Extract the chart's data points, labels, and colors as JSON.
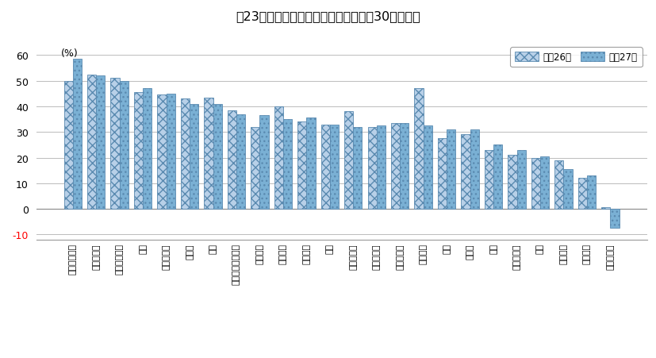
{
  "title": "第23図　産業別の付加価値率（従業者30人以上）",
  "ylabel": "(%)",
  "ylim": [
    -12,
    65
  ],
  "yticks": [
    -10,
    0,
    10,
    20,
    30,
    40,
    50,
    60
  ],
  "categories": [
    "飲料・たばこ",
    "窯業・土石",
    "情報通信機械",
    "化学",
    "業務用機械",
    "食料品",
    "印刷",
    "プラスチック製品",
    "電気機械",
    "金属製品",
    "ゴム製品",
    "繊維",
    "はん用機械",
    "生産用機械",
    "パルプ・紙",
    "なめし革",
    "木材",
    "その他",
    "家具",
    "輸送用機械",
    "鉄鋼",
    "電子部品",
    "非鉄金属",
    "石油・石炭"
  ],
  "values_h26": [
    50.0,
    52.5,
    51.0,
    45.5,
    44.5,
    43.0,
    43.5,
    38.5,
    32.0,
    40.0,
    34.0,
    33.0,
    38.0,
    32.0,
    33.5,
    47.0,
    27.5,
    29.0,
    23.0,
    21.0,
    20.0,
    19.0,
    12.0,
    0.5
  ],
  "values_h27": [
    58.5,
    52.0,
    50.0,
    47.0,
    45.0,
    41.0,
    41.0,
    37.0,
    36.5,
    35.0,
    35.5,
    33.0,
    32.0,
    32.5,
    33.5,
    32.5,
    31.0,
    31.0,
    25.0,
    23.0,
    20.5,
    15.5,
    13.0,
    -7.5
  ],
  "color_h26": "#b8d0e8",
  "color_h27": "#7ab0d4",
  "hatch_h26": "xxx",
  "hatch_h27": "...",
  "legend_h26": "平成26年",
  "legend_h27": "平成27年",
  "bar_width": 0.38,
  "background_color": "#ffffff",
  "grid_color": "#bbbbbb",
  "axis_color": "#555555"
}
